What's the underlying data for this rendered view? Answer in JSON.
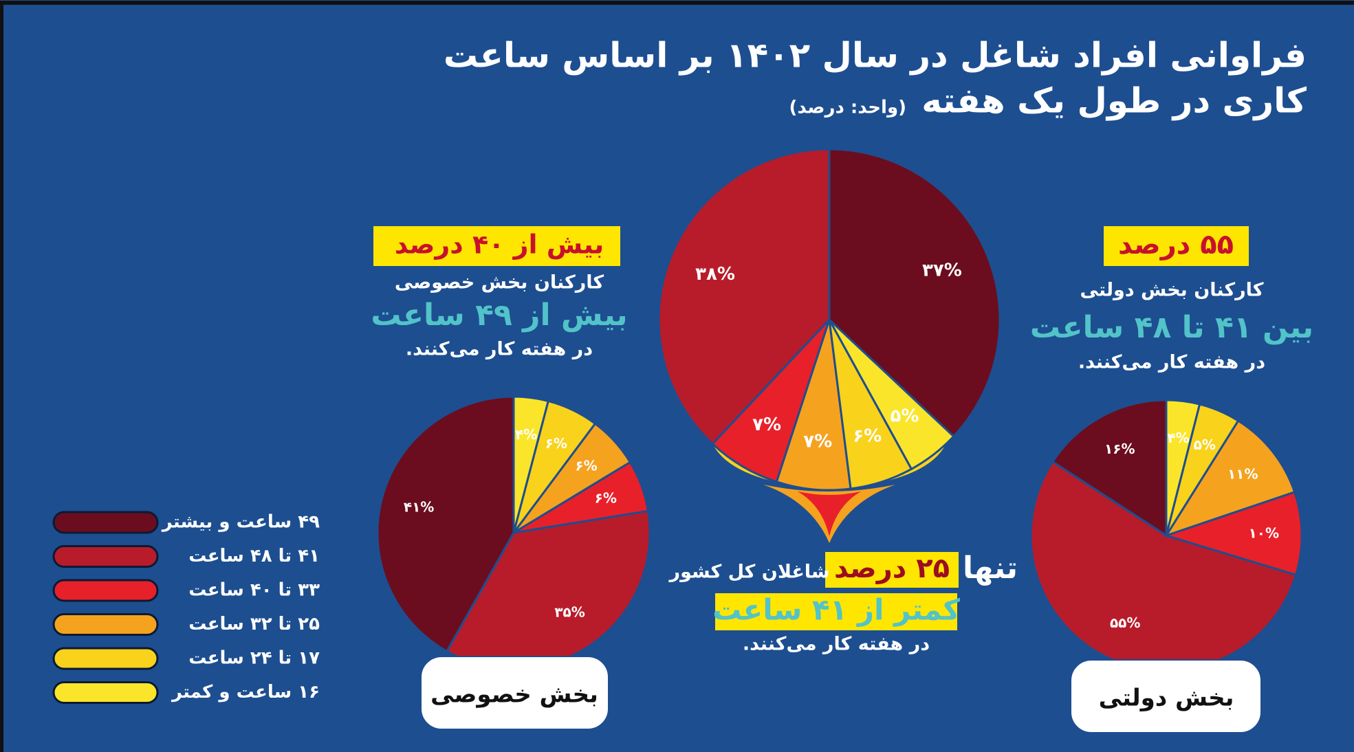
{
  "title": [
    "فراوانی افراد شاغل در سال ۱۴۰۲ بر اساس ساعت",
    "کاری در طول یک هفته"
  ],
  "unit": "(واحد: درصد)",
  "legend": {
    "labels": [
      "۴۹ ساعت و بیشتر",
      "۴۱ تا ۴۸ ساعت",
      "۳۳ تا ۴۰ ساعت",
      "۲۵ تا ۳۲ ساعت",
      "۱۷ تا ۲۴ ساعت",
      "۱۶ ساعت و کمتر"
    ],
    "colors": [
      "#6b0d1e",
      "#b81c2a",
      "#e8202a",
      "#f5a21f",
      "#f8d21b",
      "#fbe52a"
    ]
  },
  "chart_data": [
    {
      "type": "pie",
      "title": "بخش خصوصی",
      "values": [
        41,
        35,
        6,
        6,
        6,
        4
      ],
      "value_labels": [
        "۴۱%",
        "۳۵%",
        "۶%",
        "۶%",
        "۶%",
        "۴%"
      ],
      "callout": [
        "بیش از ۴۰ درصد",
        "کارکنان بخش خصوصی",
        "بیش از ۴۹ ساعت",
        "در هفته کار می‌کنند."
      ]
    },
    {
      "type": "pie",
      "values": [
        37,
        38,
        7,
        7,
        6,
        5
      ],
      "value_labels": [
        "۳۷%",
        "۳۸%",
        "۷%",
        "۷%",
        "۶%",
        "۵%"
      ],
      "callout": [
        "تنها",
        "۲۵ درصد",
        "شاغلان کل کشور",
        "کمتر از ۴۱ ساعت",
        "در هفته کار می‌کنند."
      ]
    },
    {
      "type": "pie",
      "title": "بخش دولتی",
      "values": [
        16,
        55,
        10,
        11,
        5,
        4
      ],
      "value_labels": [
        "۱۶%",
        "۵۵%",
        "۱۰%",
        "۱۱%",
        "۵%",
        "۴%"
      ],
      "callout": [
        "۵۵ درصد",
        "کارکنان بخش دولتی",
        "بین ۴۱ تا ۴۸ ساعت",
        "در هفته کار می‌کنند."
      ]
    }
  ]
}
